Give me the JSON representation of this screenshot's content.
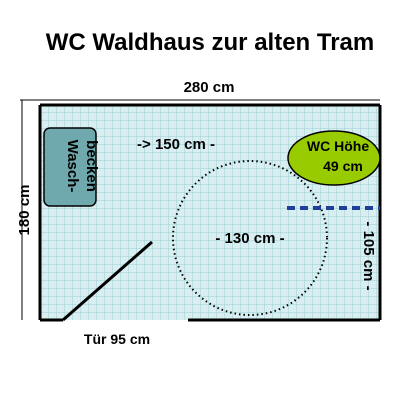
{
  "title": "WC Waldhaus zur alten Tram",
  "labels": {
    "width": "280 cm",
    "height": "180 cm",
    "depth": "-> 150 cm -",
    "circle": "- 130 cm -",
    "wc_height_side": "- 105 cm -",
    "door": "Tür 95 cm"
  },
  "sink": {
    "line1": "Wasch-",
    "line2": "becken"
  },
  "wc": {
    "line1": "WC Höhe",
    "line2": "49 cm"
  },
  "colors": {
    "room_fill": "#d8eef0",
    "grid": "#9ccfd3",
    "sink_fill": "#6fa9ae",
    "wc_fill": "#99cc00",
    "dashed_line": "#1f3f99"
  }
}
